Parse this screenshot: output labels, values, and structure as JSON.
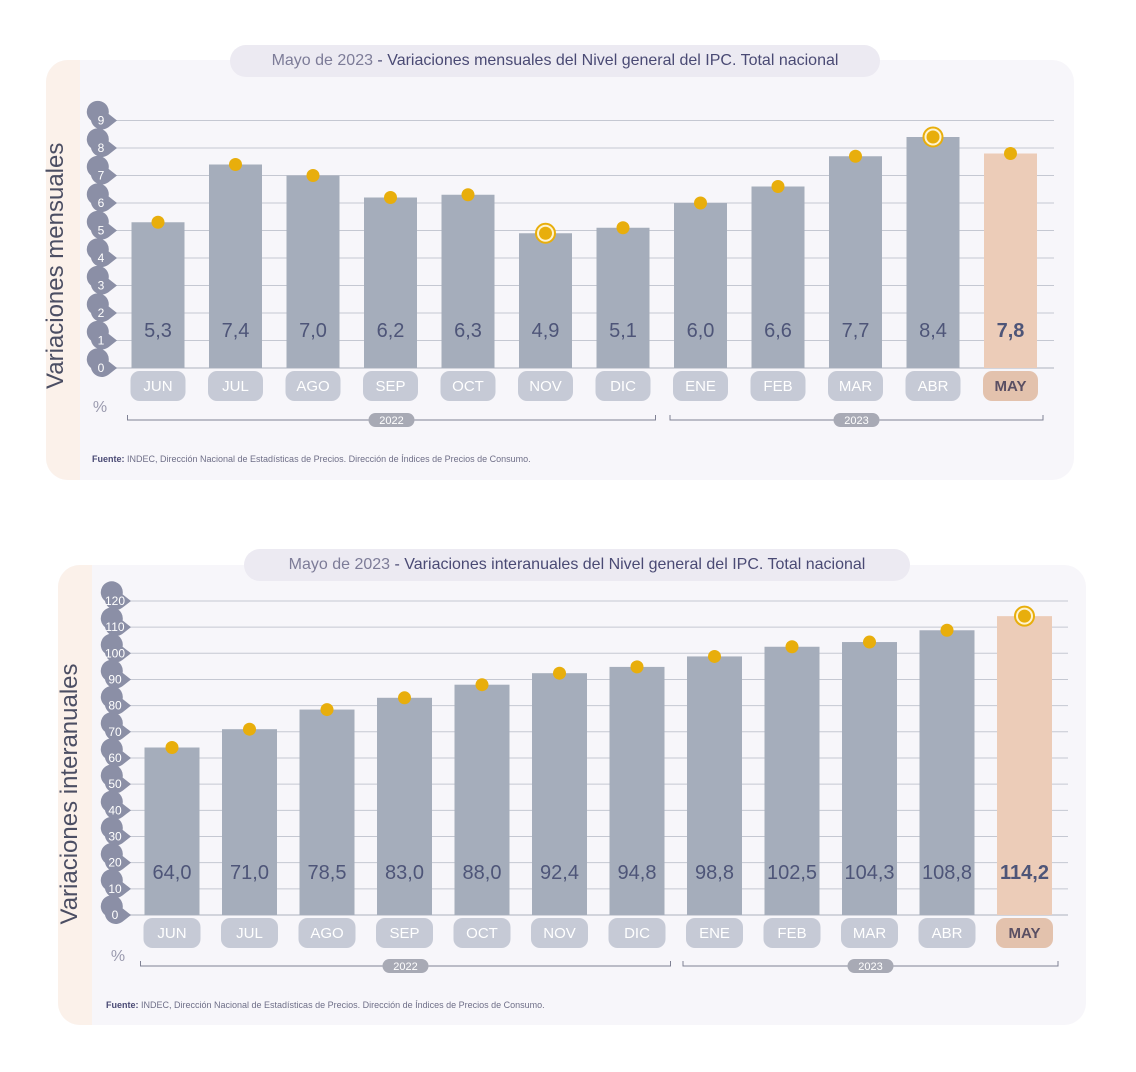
{
  "colors": {
    "bar": "#a5adbb",
    "bar_highlight": "#ecccb8",
    "grid": "#c5c8d2",
    "axis_badge": "#8b8fa6",
    "label_badge": "#c6cad6",
    "label_badge_highlight": "#e3c2ad",
    "value_text": "#4e5578",
    "dot": "#e8ae0c",
    "year_badge": "#a8aab5"
  },
  "charts": [
    {
      "title_lead": "Mayo de 2023",
      "title_sep": " - ",
      "title_main": "Variaciones mensuales del Nivel general del IPC. Total nacional",
      "ylabel": "Variaciones mensuales",
      "unit": "%",
      "source_bold": "Fuente:",
      "source_text": " INDEC, Dirección Nacional de Estadísticas de Precios. Dirección de Índices de Precios de Consumo."
    },
    {
      "title_lead": "Mayo de 2023",
      "title_sep": " - ",
      "title_main": "Variaciones interanuales del Nivel general del IPC. Total nacional",
      "ylabel": "Variaciones interanuales",
      "unit": "%",
      "source_bold": "Fuente:",
      "source_text": " INDEC, Dirección Nacional de Estadísticas de Precios. Dirección de Índices de Precios de Consumo."
    }
  ],
  "chart_data": [
    {
      "type": "bar",
      "title": "Mayo de 2023 - Variaciones mensuales del Nivel general del IPC. Total nacional",
      "ylabel": "Variaciones mensuales",
      "unit": "%",
      "categories": [
        "JUN",
        "JUL",
        "AGO",
        "SEP",
        "OCT",
        "NOV",
        "DIC",
        "ENE",
        "FEB",
        "MAR",
        "ABR",
        "MAY"
      ],
      "values": [
        5.3,
        7.4,
        7.0,
        6.2,
        6.3,
        4.9,
        5.1,
        6.0,
        6.6,
        7.7,
        8.4,
        7.8
      ],
      "value_labels": [
        "5,3",
        "7,4",
        "7,0",
        "6,2",
        "6,3",
        "4,9",
        "5,1",
        "6,0",
        "6,6",
        "7,7",
        "8,4",
        "7,8"
      ],
      "highlight_index": 11,
      "ringed_indices": [
        5,
        10
      ],
      "yticks": [
        "0",
        "1",
        "2",
        "3",
        "4",
        "5",
        "6",
        "7",
        "8",
        "9"
      ],
      "ylim": [
        0,
        9
      ],
      "year_groups": [
        {
          "label": "2022",
          "from": 0,
          "to": 6
        },
        {
          "label": "2023",
          "from": 7,
          "to": 11
        }
      ],
      "grid": true
    },
    {
      "type": "bar",
      "title": "Mayo de 2023 - Variaciones interanuales del Nivel general del IPC. Total nacional",
      "ylabel": "Variaciones interanuales",
      "unit": "%",
      "categories": [
        "JUN",
        "JUL",
        "AGO",
        "SEP",
        "OCT",
        "NOV",
        "DIC",
        "ENE",
        "FEB",
        "MAR",
        "ABR",
        "MAY"
      ],
      "values": [
        64.0,
        71.0,
        78.5,
        83.0,
        88.0,
        92.4,
        94.8,
        98.8,
        102.5,
        104.3,
        108.8,
        114.2
      ],
      "value_labels": [
        "64,0",
        "71,0",
        "78,5",
        "83,0",
        "88,0",
        "92,4",
        "94,8",
        "98,8",
        "102,5",
        "104,3",
        "108,8",
        "114,2"
      ],
      "highlight_index": 11,
      "ringed_indices": [
        11
      ],
      "yticks": [
        "0",
        "10",
        "20",
        "30",
        "40",
        "50",
        "60",
        "70",
        "80",
        "90",
        "100",
        "110",
        "120"
      ],
      "ylim": [
        0,
        120
      ],
      "year_groups": [
        {
          "label": "2022",
          "from": 0,
          "to": 6
        },
        {
          "label": "2023",
          "from": 7,
          "to": 11
        }
      ],
      "grid": true
    }
  ]
}
